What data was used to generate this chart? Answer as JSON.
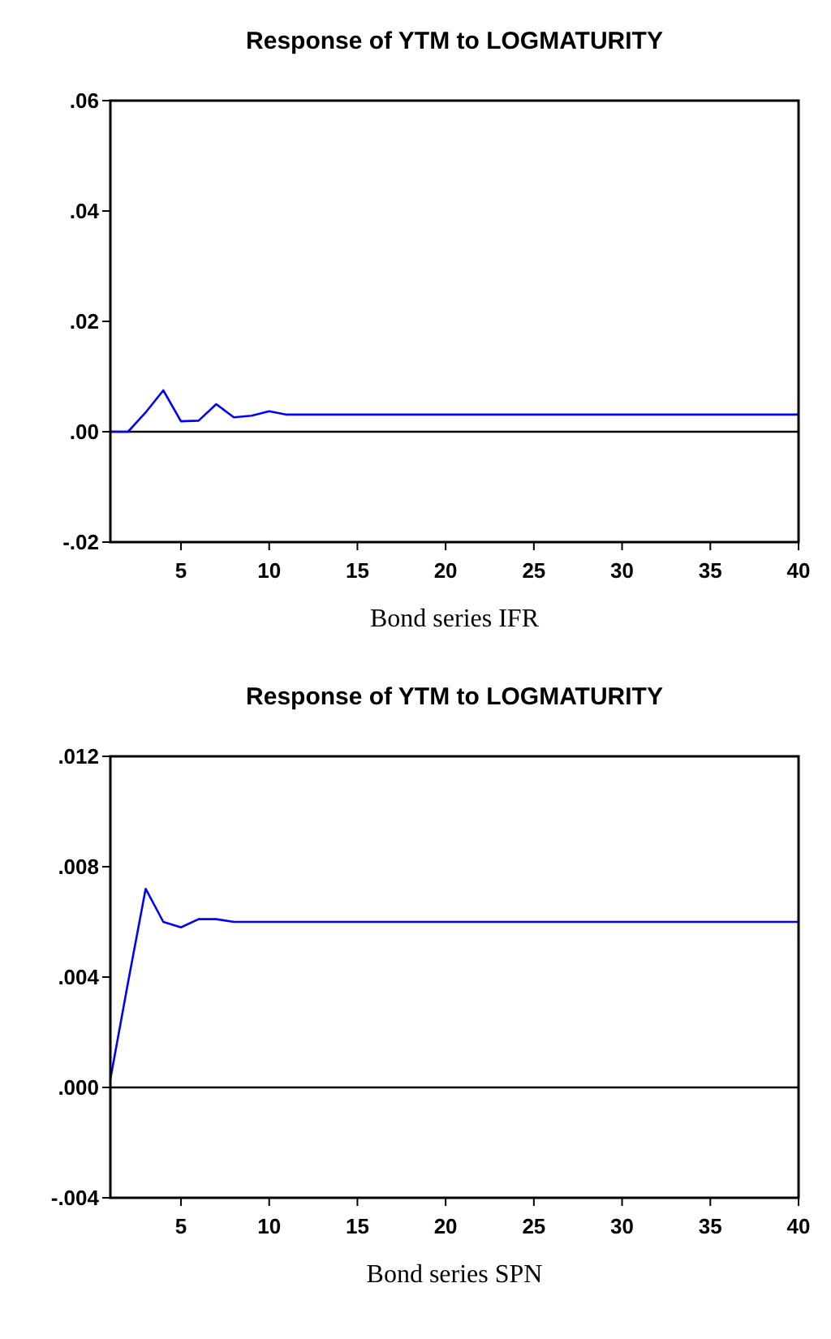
{
  "chart_data": [
    {
      "type": "line",
      "title": "Response of YTM to LOGMATURITY",
      "xlabel": "Bond series IFR",
      "x": [
        1,
        2,
        3,
        4,
        5,
        6,
        7,
        8,
        9,
        10,
        11,
        12,
        13,
        14,
        15,
        16,
        17,
        18,
        19,
        20,
        21,
        22,
        23,
        24,
        25,
        26,
        27,
        28,
        29,
        30,
        31,
        32,
        33,
        34,
        35,
        36,
        37,
        38,
        39,
        40
      ],
      "series": [
        {
          "color": "#0000ff",
          "values": [
            0,
            0,
            0.0035,
            0.0075,
            0.0019,
            0.002,
            0.005,
            0.0026,
            0.0029,
            0.0037,
            0.0031,
            0.0031,
            0.0031,
            0.0031,
            0.0031,
            0.0031,
            0.0031,
            0.0031,
            0.0031,
            0.0031,
            0.0031,
            0.0031,
            0.0031,
            0.0031,
            0.0031,
            0.0031,
            0.0031,
            0.0031,
            0.0031,
            0.0031,
            0.0031,
            0.0031,
            0.0031,
            0.0031,
            0.0031,
            0.0031,
            0.0031,
            0.0031,
            0.0031,
            0.0031
          ]
        }
      ],
      "xlim": [
        1,
        40
      ],
      "xticks": [
        5,
        10,
        15,
        20,
        25,
        30,
        35,
        40
      ],
      "ylim": [
        -0.02,
        0.06
      ],
      "yticks": [
        {
          "value": -0.02,
          "label": "-.02"
        },
        {
          "value": 0,
          "label": ".00"
        },
        {
          "value": 0.02,
          "label": ".02"
        },
        {
          "value": 0.04,
          "label": ".04"
        },
        {
          "value": 0.06,
          "label": ".06"
        }
      ],
      "ref_lines": [
        {
          "axis": "y",
          "value": 0,
          "color": "#000000"
        }
      ],
      "grid": false,
      "marker": "none",
      "line_style": "solid"
    },
    {
      "type": "line",
      "title": "Response of YTM to LOGMATURITY",
      "xlabel": "Bond series SPN",
      "x": [
        1,
        2,
        3,
        4,
        5,
        6,
        7,
        8,
        9,
        10,
        11,
        12,
        13,
        14,
        15,
        16,
        17,
        18,
        19,
        20,
        21,
        22,
        23,
        24,
        25,
        26,
        27,
        28,
        29,
        30,
        31,
        32,
        33,
        34,
        35,
        36,
        37,
        38,
        39,
        40
      ],
      "series": [
        {
          "color": "#0000ff",
          "values": [
            0.0003,
            0.0038,
            0.0072,
            0.006,
            0.0058,
            0.0061,
            0.0061,
            0.006,
            0.006,
            0.006,
            0.006,
            0.006,
            0.006,
            0.006,
            0.006,
            0.006,
            0.006,
            0.006,
            0.006,
            0.006,
            0.006,
            0.006,
            0.006,
            0.006,
            0.006,
            0.006,
            0.006,
            0.006,
            0.006,
            0.006,
            0.006,
            0.006,
            0.006,
            0.006,
            0.006,
            0.006,
            0.006,
            0.006,
            0.006,
            0.006
          ]
        }
      ],
      "xlim": [
        1,
        40
      ],
      "xticks": [
        5,
        10,
        15,
        20,
        25,
        30,
        35,
        40
      ],
      "ylim": [
        -0.004,
        0.012
      ],
      "yticks": [
        {
          "value": -0.004,
          "label": "-.004"
        },
        {
          "value": 0,
          "label": ".000"
        },
        {
          "value": 0.004,
          "label": ".004"
        },
        {
          "value": 0.008,
          "label": ".008"
        },
        {
          "value": 0.012,
          "label": ".012"
        }
      ],
      "ref_lines": [
        {
          "axis": "y",
          "value": 0,
          "color": "#000000"
        }
      ],
      "grid": false,
      "marker": "none",
      "line_style": "solid"
    }
  ]
}
